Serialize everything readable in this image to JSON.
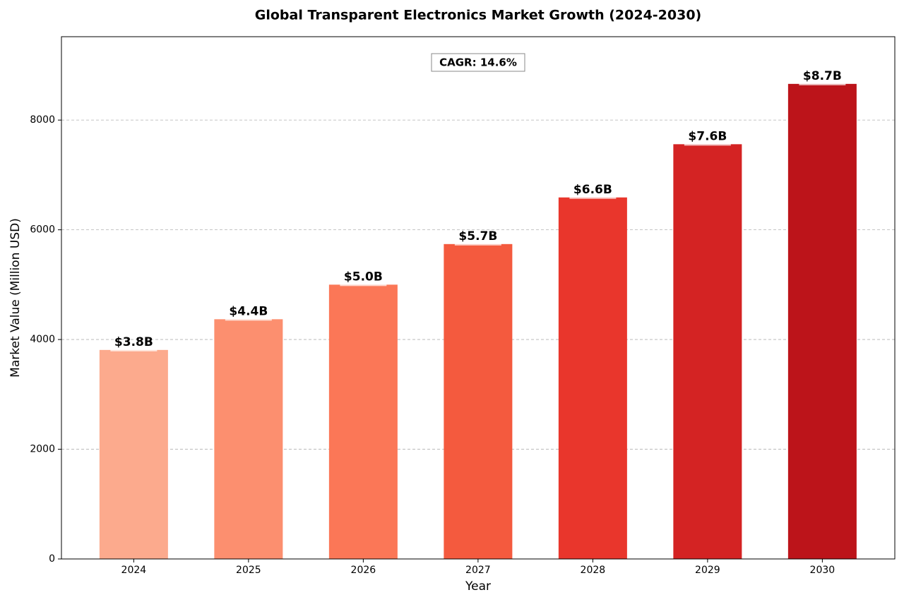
{
  "chart_data": {
    "type": "bar",
    "title": "Global Transparent Electronics Market Growth (2024-2030)",
    "x_label": "Year",
    "y_label": "Market Value (Million USD)",
    "annotation": "CAGR: 14.6%",
    "categories": [
      "2024",
      "2025",
      "2026",
      "2027",
      "2028",
      "2029",
      "2030"
    ],
    "values": [
      3810,
      4370,
      5000,
      5740,
      6590,
      7560,
      8660
    ],
    "value_labels": [
      "$3.8B",
      "$4.4B",
      "$5.0B",
      "$5.7B",
      "$6.6B",
      "$7.6B",
      "$8.7B"
    ],
    "colors": [
      "#fcaa8d",
      "#fc8f6f",
      "#fb7757",
      "#f45a3e",
      "#e9362c",
      "#d42323",
      "#bc141a"
    ],
    "ylim": [
      0,
      9520
    ],
    "yticks": [
      0,
      2000,
      4000,
      6000,
      8000
    ],
    "grid": true
  }
}
